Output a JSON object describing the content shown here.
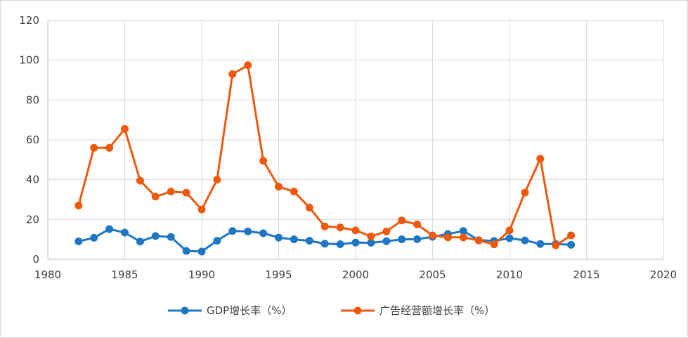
{
  "chart_data": {
    "type": "line",
    "title": "",
    "xlabel": "",
    "ylabel": "",
    "xlim": [
      1980,
      2020
    ],
    "ylim": [
      0,
      120
    ],
    "x_ticks": [
      1980,
      1985,
      1990,
      1995,
      2000,
      2005,
      2010,
      2015,
      2020
    ],
    "y_ticks": [
      0,
      20,
      40,
      60,
      80,
      100,
      120
    ],
    "grid": true,
    "legend_position": "bottom",
    "x": [
      1982,
      1983,
      1984,
      1985,
      1986,
      1987,
      1988,
      1989,
      1990,
      1991,
      1992,
      1993,
      1994,
      1995,
      1996,
      1997,
      1998,
      1999,
      2000,
      2001,
      2002,
      2003,
      2004,
      2005,
      2006,
      2007,
      2008,
      2009,
      2010,
      2011,
      2012,
      2013,
      2014
    ],
    "series": [
      {
        "name": "GDP增长率（%）",
        "color": "#1f77c4",
        "values": [
          9.0,
          10.8,
          15.2,
          13.4,
          8.9,
          11.7,
          11.2,
          4.2,
          3.9,
          9.3,
          14.2,
          14.0,
          13.1,
          10.9,
          10.0,
          9.3,
          7.8,
          7.6,
          8.4,
          8.3,
          9.1,
          10.0,
          10.1,
          11.3,
          12.7,
          14.2,
          9.6,
          9.2,
          10.6,
          9.5,
          7.7,
          7.7,
          7.3
        ]
      },
      {
        "name": "广告经营额增长率（%）",
        "color": "#ed5a0f",
        "values": [
          27.0,
          56.0,
          56.0,
          65.5,
          39.5,
          31.5,
          34.0,
          33.5,
          25.0,
          40.0,
          93.0,
          97.5,
          49.5,
          36.5,
          34.0,
          26.0,
          16.5,
          16.0,
          14.5,
          11.5,
          14.0,
          19.5,
          17.5,
          12.0,
          11.0,
          11.0,
          9.5,
          7.5,
          14.5,
          33.5,
          50.5,
          7.0,
          12.0
        ]
      }
    ]
  }
}
